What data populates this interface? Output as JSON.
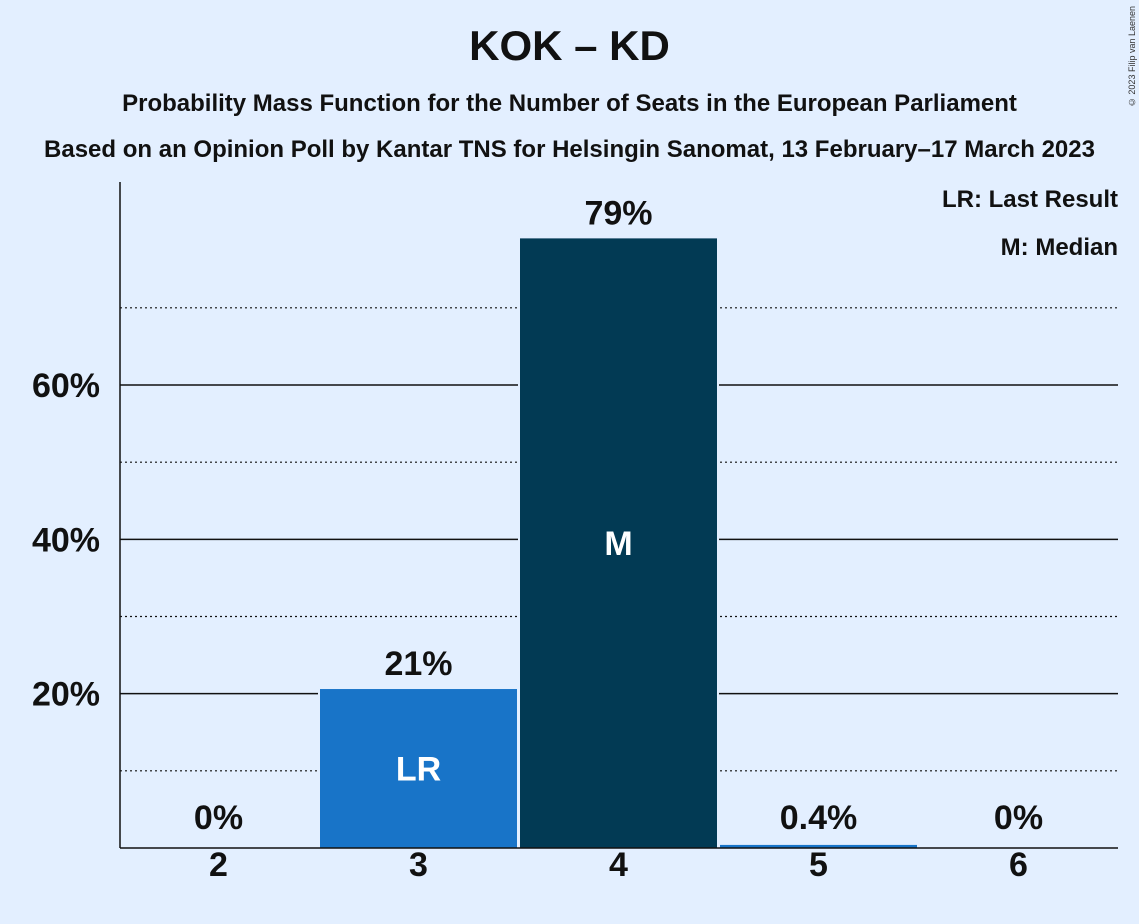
{
  "title": "KOK – KD",
  "subtitle": "Probability Mass Function for the Number of Seats in the European Parliament",
  "subtitle2": "Based on an Opinion Poll by Kantar TNS for Helsingin Sanomat, 13 February–17 March 2023",
  "copyright": "© 2023 Filip van Laenen",
  "legend": {
    "last_result": "LR: Last Result",
    "median": "M: Median"
  },
  "colors": {
    "background": "#e3efff",
    "bar_default": "#1874c8",
    "bar_median": "#023a54",
    "bar_label_text": "#ffffff"
  },
  "chart_data": {
    "type": "bar",
    "categories": [
      "2",
      "3",
      "4",
      "5",
      "6"
    ],
    "values": [
      0,
      20.6,
      79,
      0.4,
      0
    ],
    "value_labels": [
      "0%",
      "21%",
      "79%",
      "0.4%",
      "0%"
    ],
    "bar_markers": [
      "",
      "LR",
      "M",
      "",
      ""
    ],
    "yticks": [
      20,
      40,
      60
    ],
    "ytick_labels": [
      "20%",
      "40%",
      "60%"
    ],
    "minor_gridlines": [
      10,
      30,
      50,
      70
    ],
    "ylim": [
      0,
      86
    ],
    "xlabel": "",
    "ylabel": "",
    "grid": true,
    "legend_position": "top-right"
  }
}
